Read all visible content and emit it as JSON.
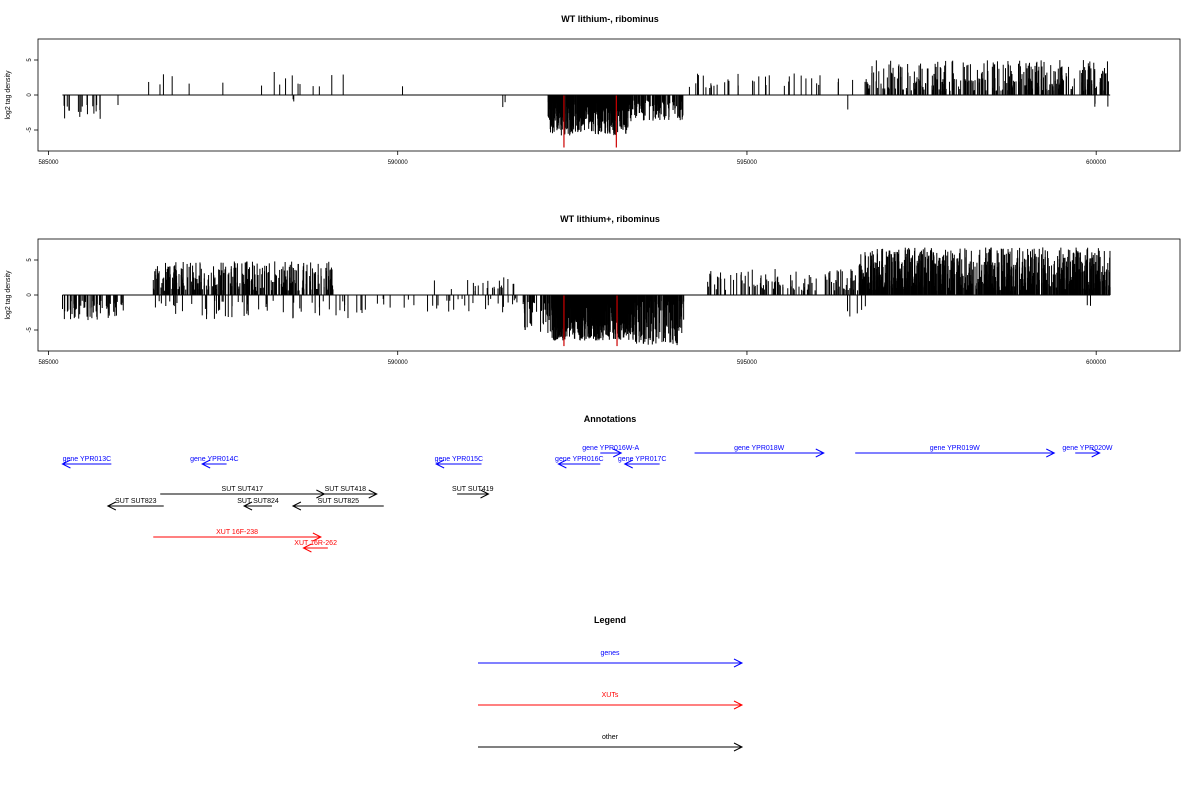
{
  "colors": {
    "gene": "#0000ff",
    "xut": "#ff0000",
    "other": "#000000",
    "highlight": "#cc0000"
  },
  "chart_data": [
    {
      "type": "bar",
      "title": "WT lithium-, ribominus",
      "ylabel": "log2 tag density",
      "xlim": [
        584850,
        601200
      ],
      "ylim": [
        -8,
        8
      ],
      "xticks": [
        585000,
        590000,
        595000,
        600000
      ],
      "yticks": [
        -5,
        0,
        5
      ],
      "baseline": [
        585200,
        600200
      ],
      "pos_segments": [
        {
          "from": 586050,
          "to": 589500,
          "density": 0.005,
          "min": 1.0,
          "max": 3.3
        },
        {
          "from": 590050,
          "to": 590100,
          "density": 0.02,
          "min": 1.0,
          "max": 1.6
        },
        {
          "from": 594000,
          "to": 594700,
          "density": 0.02,
          "min": 1.0,
          "max": 3.2
        },
        {
          "from": 594700,
          "to": 596700,
          "density": 0.012,
          "min": 1.0,
          "max": 3.2
        },
        {
          "from": 596700,
          "to": 600200,
          "density": 0.085,
          "min": 0.6,
          "max": 5.0
        }
      ],
      "neg_segments": [
        {
          "from": 585200,
          "to": 586100,
          "density": 0.02,
          "min": 1.2,
          "max": 3.6
        },
        {
          "from": 588500,
          "to": 588700,
          "density": 0.01,
          "min": 0.5,
          "max": 1.0
        },
        {
          "from": 591300,
          "to": 591650,
          "density": 0.006,
          "min": 1.0,
          "max": 2.0
        },
        {
          "from": 592150,
          "to": 593300,
          "density": 0.38,
          "min": 1.0,
          "max": 5.8
        },
        {
          "from": 593300,
          "to": 594100,
          "density": 0.14,
          "min": 0.8,
          "max": 3.8
        },
        {
          "from": 596400,
          "to": 596500,
          "density": 0.01,
          "min": 2.0,
          "max": 3.4
        },
        {
          "from": 599900,
          "to": 600200,
          "density": 0.01,
          "min": 1.0,
          "max": 1.8
        }
      ],
      "highlight_bars": [
        {
          "x": 592380,
          "y": -7.5
        },
        {
          "x": 593130,
          "y": -7.5
        }
      ]
    },
    {
      "type": "bar",
      "title": "WT lithium+, ribominus",
      "ylabel": "log2 tag density",
      "xlim": [
        584850,
        601200
      ],
      "ylim": [
        -8,
        8
      ],
      "xticks": [
        585000,
        590000,
        595000,
        600000
      ],
      "yticks": [
        -5,
        0,
        5
      ],
      "baseline": [
        585200,
        600200
      ],
      "pos_segments": [
        {
          "from": 586500,
          "to": 589100,
          "density": 0.11,
          "min": 0.6,
          "max": 4.8
        },
        {
          "from": 590500,
          "to": 591500,
          "density": 0.018,
          "min": 0.6,
          "max": 2.4
        },
        {
          "from": 591500,
          "to": 591700,
          "density": 0.02,
          "min": 1.5,
          "max": 3.0
        },
        {
          "from": 594400,
          "to": 596600,
          "density": 0.05,
          "min": 0.6,
          "max": 3.8
        },
        {
          "from": 596600,
          "to": 600200,
          "density": 0.22,
          "min": 0.6,
          "max": 6.8
        }
      ],
      "neg_segments": [
        {
          "from": 585200,
          "to": 586100,
          "density": 0.08,
          "min": 0.8,
          "max": 3.8
        },
        {
          "from": 586500,
          "to": 589600,
          "density": 0.02,
          "min": 0.8,
          "max": 3.5
        },
        {
          "from": 589600,
          "to": 591800,
          "density": 0.015,
          "min": 0.5,
          "max": 2.5
        },
        {
          "from": 591800,
          "to": 592200,
          "density": 0.1,
          "min": 1.0,
          "max": 5.8
        },
        {
          "from": 592200,
          "to": 593400,
          "density": 0.5,
          "min": 1.0,
          "max": 6.5
        },
        {
          "from": 593400,
          "to": 594100,
          "density": 0.22,
          "min": 0.8,
          "max": 7.2
        },
        {
          "from": 596400,
          "to": 596900,
          "density": 0.01,
          "min": 0.8,
          "max": 3.2
        },
        {
          "from": 599800,
          "to": 600000,
          "density": 0.01,
          "min": 1.0,
          "max": 1.6
        }
      ],
      "highlight_bars": [
        {
          "x": 592380,
          "y": -7.3
        },
        {
          "x": 593140,
          "y": -7.3
        }
      ]
    }
  ],
  "annotations": {
    "title": "Annotations",
    "items": [
      {
        "label": "gene YPR013C",
        "type": "gene",
        "strand": "-",
        "start": 585200,
        "end": 585900,
        "row": 0
      },
      {
        "label": "gene YPR014C",
        "type": "gene",
        "strand": "-",
        "start": 587200,
        "end": 587550,
        "row": 0
      },
      {
        "label": "gene YPR015C",
        "type": "gene",
        "strand": "-",
        "start": 590550,
        "end": 591200,
        "row": 0
      },
      {
        "label": "gene YPR016C",
        "type": "gene",
        "strand": "-",
        "start": 592300,
        "end": 592900,
        "row": 0
      },
      {
        "label": "gene YPR017C",
        "type": "gene",
        "strand": "-",
        "start": 593250,
        "end": 593750,
        "row": 0
      },
      {
        "label": "gene YPR016W-A",
        "type": "gene",
        "strand": "+",
        "start": 592900,
        "end": 593200,
        "row": -1
      },
      {
        "label": "gene YPR018W",
        "type": "gene",
        "strand": "+",
        "start": 594250,
        "end": 596100,
        "row": -1
      },
      {
        "label": "gene YPR019W",
        "type": "gene",
        "strand": "+",
        "start": 596550,
        "end": 599400,
        "row": -1
      },
      {
        "label": "gene YPR020W",
        "type": "gene",
        "strand": "+",
        "start": 599700,
        "end": 600050,
        "row": -1
      },
      {
        "label": "SUT SUT417",
        "type": "other",
        "strand": "+",
        "start": 586600,
        "end": 588950,
        "row": 2
      },
      {
        "label": "SUT SUT418",
        "type": "other",
        "strand": "+",
        "start": 588800,
        "end": 589700,
        "row": 2
      },
      {
        "label": "SUT SUT419",
        "type": "other",
        "strand": "+",
        "start": 590850,
        "end": 591300,
        "row": 2
      },
      {
        "label": "SUT SUT823",
        "type": "other",
        "strand": "-",
        "start": 585850,
        "end": 586650,
        "row": 3
      },
      {
        "label": "SUT SUT824",
        "type": "other",
        "strand": "-",
        "start": 587800,
        "end": 588200,
        "row": 3
      },
      {
        "label": "SUT SUT825",
        "type": "other",
        "strand": "-",
        "start": 588500,
        "end": 589800,
        "row": 3
      },
      {
        "label": "XUT 16F-238",
        "type": "xut",
        "strand": "+",
        "start": 586500,
        "end": 588900,
        "row": 5
      },
      {
        "label": "XUT 16R-262",
        "type": "xut",
        "strand": "-",
        "start": 588650,
        "end": 589000,
        "row": 6
      }
    ]
  },
  "legend": {
    "title": "Legend",
    "items": [
      {
        "label": "genes",
        "type": "gene"
      },
      {
        "label": "XUTs",
        "type": "xut"
      },
      {
        "label": "other",
        "type": "other"
      }
    ]
  }
}
